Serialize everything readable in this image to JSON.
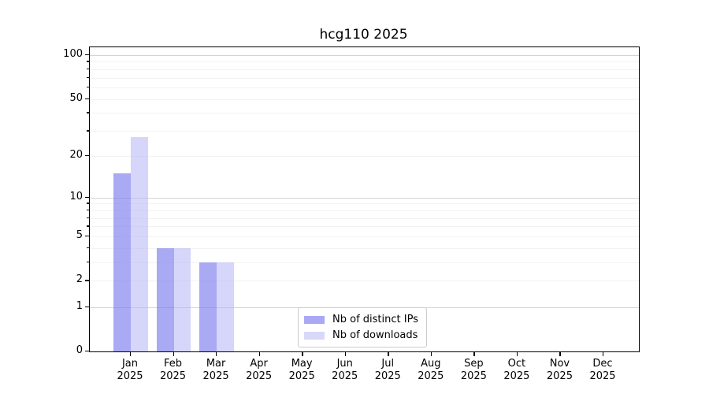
{
  "chart_data": {
    "type": "bar",
    "title": "hcg110 2025",
    "categories": [
      "Jan",
      "Feb",
      "Mar",
      "Apr",
      "May",
      "Jun",
      "Jul",
      "Aug",
      "Sep",
      "Oct",
      "Nov",
      "Dec"
    ],
    "category_year": "2025",
    "series": [
      {
        "name": "Nb of distinct IPs",
        "color": "#a9a9f3",
        "fill": "rgba(123,123,238,0.65)",
        "values": [
          15,
          4,
          3,
          0,
          0,
          0,
          0,
          0,
          0,
          0,
          0,
          0
        ]
      },
      {
        "name": "Nb of downloads",
        "color": "#d8d8f8",
        "fill": "rgba(180,180,246,0.55)",
        "values": [
          27,
          4,
          3,
          0,
          0,
          0,
          0,
          0,
          0,
          0,
          0,
          0
        ]
      }
    ],
    "y_scale": "log1p",
    "ylim": [
      0,
      113
    ],
    "y_tick_labels": [
      100,
      50,
      20,
      10,
      5,
      2,
      1,
      0
    ],
    "y_major_gridlines": [
      1,
      10,
      100
    ],
    "y_minor_gridlines": [
      2,
      3,
      4,
      5,
      6,
      7,
      8,
      9,
      20,
      30,
      40,
      50,
      60,
      70,
      80,
      90
    ],
    "y_minor_ticks": [
      3,
      4,
      6,
      7,
      8,
      9,
      30,
      40,
      60,
      70,
      80,
      90
    ],
    "grid": "horizontal",
    "legend_position": "bottom-center"
  }
}
